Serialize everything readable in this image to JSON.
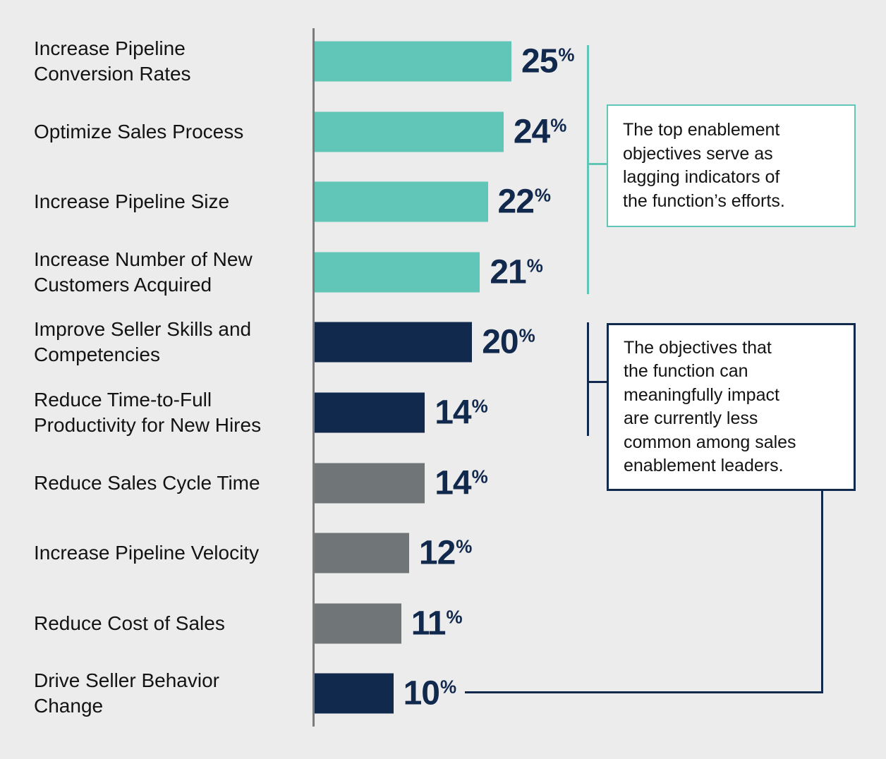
{
  "chart_data": {
    "type": "bar",
    "orientation": "horizontal",
    "title": "",
    "xlabel": "",
    "ylabel": "",
    "xlim": [
      0,
      25
    ],
    "grid": false,
    "legend": false,
    "value_suffix": "%",
    "categories": [
      "Increase Pipeline\nConversion Rates",
      "Optimize Sales Process",
      "Increase Pipeline Size",
      "Increase Number of New\nCustomers Acquired",
      "Improve Seller Skills and\nCompetencies",
      "Reduce Time-to-Full\nProductivity for New Hires",
      "Reduce Sales Cycle Time",
      "Increase Pipeline Velocity",
      "Reduce Cost of Sales",
      "Drive Seller Behavior\nChange"
    ],
    "values": [
      25,
      24,
      22,
      21,
      20,
      14,
      14,
      12,
      11,
      10
    ],
    "bar_color_keys": [
      "teal",
      "teal",
      "teal",
      "teal",
      "navy",
      "navy",
      "gray",
      "gray",
      "gray",
      "navy"
    ],
    "palette": {
      "teal": "#61C6B8",
      "navy": "#12294E",
      "gray": "#707677"
    }
  },
  "annotations": {
    "callout_top": {
      "text": "The top enablement\nobjectives serve as\nlagging indicators of\nthe function’s efforts.",
      "accent_color": "#61C6B8"
    },
    "callout_bottom": {
      "text": "The objectives that\nthe function can\nmeaningfully impact\nare currently less\ncommon among sales\nenablement leaders.",
      "accent_color": "#12294E"
    }
  },
  "colors": {
    "background": "#ECECEC",
    "axis_line": "#7B7B7B",
    "category_text": "#131313",
    "value_text": "#12294E",
    "callout_background": "#FFFFFF"
  }
}
